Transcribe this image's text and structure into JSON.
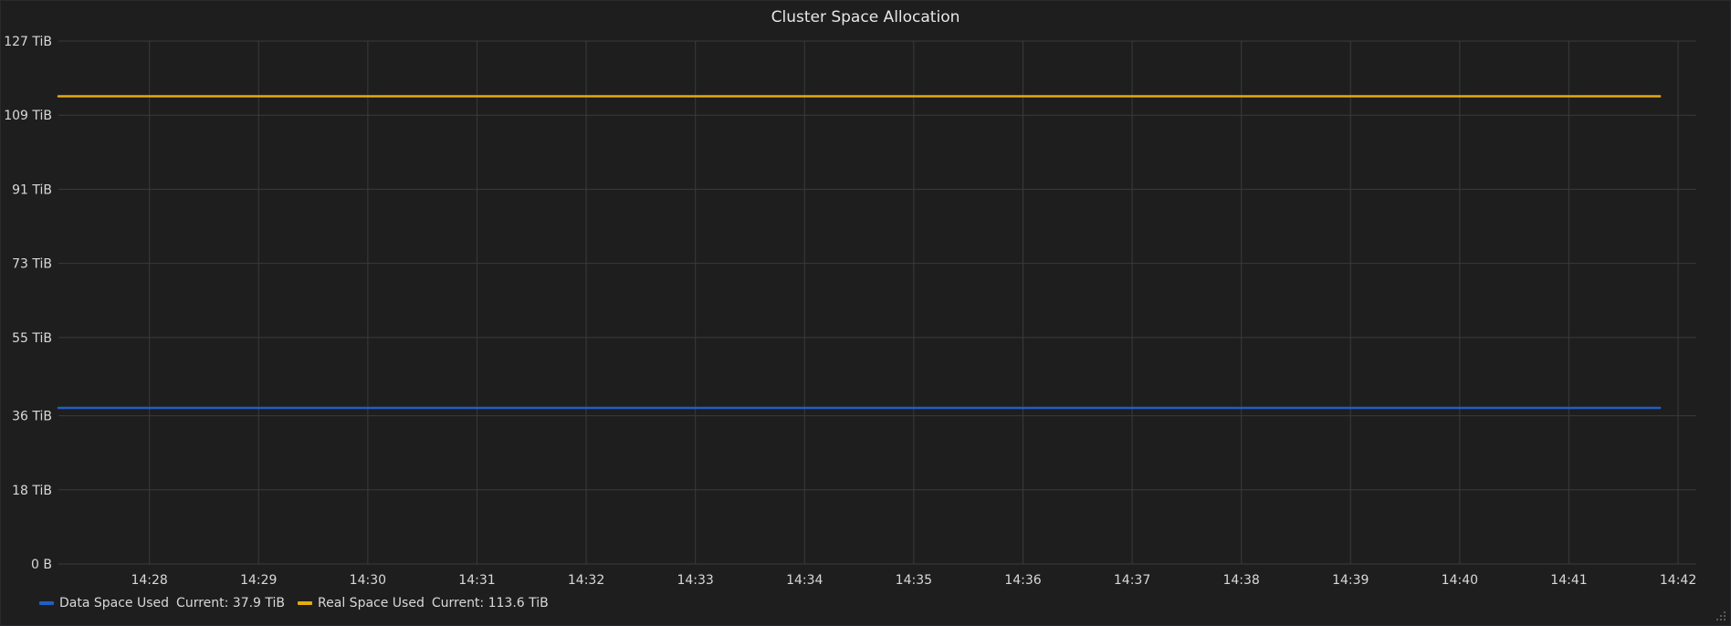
{
  "panel": {
    "title": "Cluster Space Allocation"
  },
  "colors": {
    "background": "#1f1e1f",
    "grid": "#3a3a3c",
    "text": "#d8d9da",
    "data_space_used": "#1f60c4",
    "real_space_used": "#e5ac0e"
  },
  "chart_data": {
    "type": "line",
    "title": "Cluster Space Allocation",
    "xlabel": "",
    "ylabel": "",
    "x_ticks": [
      "14:28",
      "14:29",
      "14:30",
      "14:31",
      "14:32",
      "14:33",
      "14:34",
      "14:35",
      "14:36",
      "14:37",
      "14:38",
      "14:39",
      "14:40",
      "14:41",
      "14:42"
    ],
    "y_ticks": [
      "0 B",
      "18 TiB",
      "36 TiB",
      "55 TiB",
      "73 TiB",
      "91 TiB",
      "109 TiB",
      "127 TiB"
    ],
    "y_unit": "TiB",
    "xlim": [
      "14:27:10",
      "14:42:10"
    ],
    "ylim": [
      0,
      127
    ],
    "grid": true,
    "legend_position": "bottom-left",
    "x": [
      "14:27:10",
      "14:41:50"
    ],
    "series": [
      {
        "name": "Data Space Used",
        "values": [
          37.9,
          37.9
        ],
        "color": "#1f60c4",
        "current": "Current: 37.9 TiB"
      },
      {
        "name": "Real Space Used",
        "values": [
          113.6,
          113.6
        ],
        "color": "#e5ac0e",
        "current": "Current: 113.6 TiB"
      }
    ]
  }
}
